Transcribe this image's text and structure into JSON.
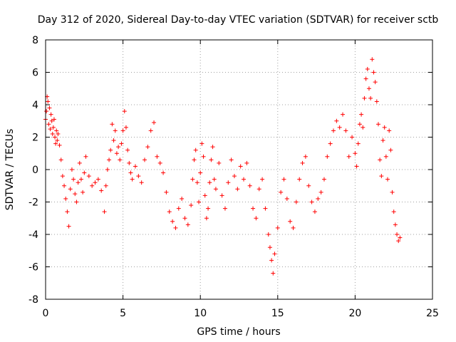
{
  "chart_data": {
    "type": "scatter",
    "title": "Day 312 of 2020, Sidereal Day-to-day VTEC variation (SDTVAR) for receiver sctb",
    "xlabel": "GPS time / hours",
    "ylabel": "SDTVAR / TECUs",
    "xlim": [
      0,
      25
    ],
    "ylim": [
      -8,
      8
    ],
    "xticks": [
      0,
      5,
      10,
      15,
      20,
      25
    ],
    "yticks": [
      -8,
      -6,
      -4,
      -2,
      0,
      2,
      4,
      6,
      8
    ],
    "grid": true,
    "marker": "+",
    "color": "#ff0000",
    "series": [
      {
        "name": "SDTVAR",
        "x": [
          0.0,
          0.05,
          0.1,
          0.15,
          0.2,
          0.25,
          0.3,
          0.35,
          0.4,
          0.45,
          0.5,
          0.55,
          0.6,
          0.65,
          0.7,
          0.75,
          0.8,
          0.9,
          1.0,
          1.1,
          1.2,
          1.3,
          1.4,
          1.5,
          1.6,
          1.7,
          1.8,
          1.9,
          2.0,
          2.1,
          2.2,
          2.3,
          2.4,
          2.5,
          2.6,
          2.8,
          3.0,
          3.2,
          3.4,
          3.6,
          3.8,
          3.9,
          4.0,
          4.1,
          4.2,
          4.3,
          4.4,
          4.5,
          4.6,
          4.7,
          4.8,
          4.9,
          5.0,
          5.1,
          5.2,
          5.3,
          5.4,
          5.5,
          5.6,
          5.8,
          6.0,
          6.2,
          6.4,
          6.6,
          6.8,
          7.0,
          7.2,
          7.4,
          7.6,
          7.8,
          8.0,
          8.2,
          8.4,
          8.6,
          8.8,
          9.0,
          9.2,
          9.4,
          9.5,
          9.6,
          9.7,
          9.8,
          9.9,
          10.0,
          10.1,
          10.2,
          10.3,
          10.4,
          10.5,
          10.6,
          10.7,
          10.8,
          10.9,
          11.0,
          11.2,
          11.4,
          11.6,
          11.8,
          12.0,
          12.2,
          12.4,
          12.6,
          12.8,
          13.0,
          13.2,
          13.4,
          13.6,
          13.8,
          14.0,
          14.2,
          14.4,
          14.5,
          14.6,
          14.7,
          14.8,
          15.0,
          15.2,
          15.4,
          15.6,
          15.8,
          16.0,
          16.2,
          16.4,
          16.6,
          16.8,
          17.0,
          17.2,
          17.4,
          17.6,
          17.8,
          18.0,
          18.2,
          18.4,
          18.6,
          18.8,
          19.0,
          19.2,
          19.4,
          19.6,
          19.8,
          20.0,
          20.1,
          20.2,
          20.3,
          20.4,
          20.5,
          20.6,
          20.7,
          20.8,
          20.9,
          21.0,
          21.1,
          21.2,
          21.3,
          21.4,
          21.5,
          21.6,
          21.7,
          21.8,
          21.9,
          22.0,
          22.1,
          22.2,
          22.3,
          22.4,
          22.5,
          22.6,
          22.7,
          22.8,
          22.9
        ],
        "values": [
          3.1,
          3.6,
          4.5,
          4.2,
          2.8,
          3.8,
          2.5,
          3.4,
          3.0,
          2.2,
          2.6,
          3.1,
          2.0,
          1.6,
          2.4,
          1.8,
          2.2,
          1.5,
          0.6,
          -0.4,
          -1.0,
          -1.8,
          -2.6,
          -3.5,
          -1.2,
          0.0,
          -0.6,
          -1.5,
          -2.0,
          -0.8,
          0.4,
          -0.6,
          -1.4,
          -0.2,
          0.8,
          -0.4,
          -1.0,
          -0.8,
          -0.6,
          -1.3,
          -2.6,
          -1.0,
          0.0,
          0.6,
          1.2,
          2.8,
          1.8,
          2.4,
          1.0,
          1.4,
          0.6,
          1.6,
          2.4,
          3.6,
          2.6,
          1.2,
          0.4,
          -0.2,
          -0.6,
          0.2,
          -0.4,
          -0.8,
          0.6,
          1.4,
          2.4,
          2.9,
          0.8,
          0.4,
          -0.2,
          -1.4,
          -2.6,
          -3.2,
          -3.6,
          -2.4,
          -1.8,
          -3.0,
          -3.4,
          -2.2,
          -0.6,
          0.6,
          1.2,
          -0.8,
          -2.0,
          -0.2,
          1.6,
          0.8,
          -1.6,
          -3.0,
          -2.4,
          -0.8,
          0.6,
          1.4,
          -0.6,
          -1.2,
          0.4,
          -1.6,
          -2.4,
          -0.8,
          0.6,
          -0.4,
          -1.2,
          0.2,
          -0.6,
          0.4,
          -1.0,
          -2.4,
          -3.0,
          -1.2,
          -0.6,
          -2.4,
          -4.0,
          -4.8,
          -5.6,
          -6.4,
          -5.2,
          -3.6,
          -1.4,
          -0.6,
          -1.8,
          -3.2,
          -3.6,
          -2.0,
          -0.6,
          0.4,
          0.8,
          -1.0,
          -2.0,
          -2.6,
          -1.8,
          -1.4,
          -0.6,
          0.8,
          1.6,
          2.4,
          3.0,
          2.6,
          3.4,
          2.4,
          0.8,
          2.0,
          1.0,
          0.2,
          1.6,
          2.8,
          3.4,
          2.6,
          4.4,
          5.6,
          6.2,
          5.0,
          4.4,
          6.8,
          6.0,
          5.4,
          4.2,
          2.8,
          0.6,
          -0.4,
          1.8,
          2.6,
          0.8,
          -0.6,
          2.4,
          1.2,
          -1.4,
          -2.6,
          -3.4,
          -4.0,
          -4.4,
          -4.2
        ]
      }
    ]
  }
}
